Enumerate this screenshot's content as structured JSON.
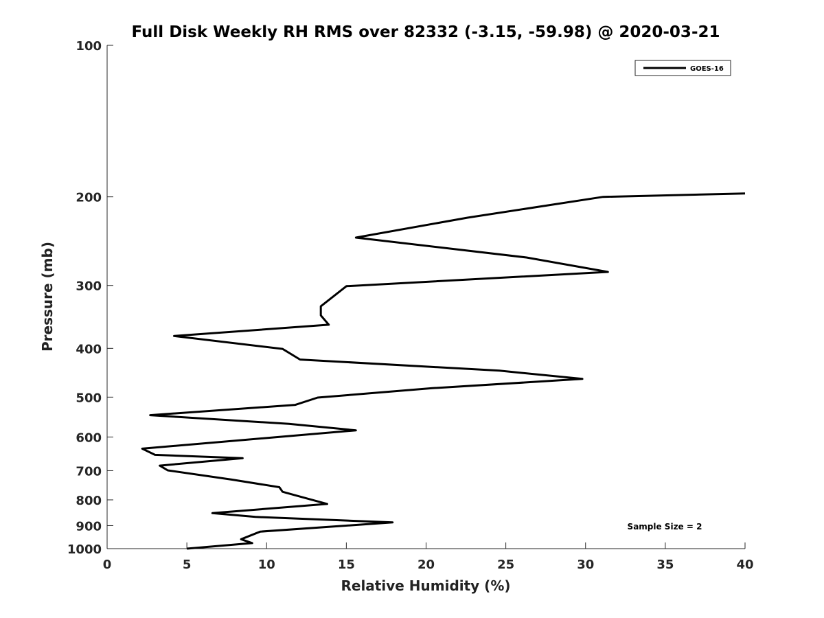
{
  "chart_data": {
    "type": "line",
    "title": "Full Disk Weekly RH RMS over 82332 (-3.15, -59.98) @ 2020-03-21",
    "xlabel": "Relative Humidity (%)",
    "ylabel": "Pressure (mb)",
    "xlim": [
      0,
      40
    ],
    "ylim": [
      1000,
      100
    ],
    "y_scale": "log",
    "y_reversed": true,
    "grid": false,
    "legend_position": "top-right",
    "x_ticks": [
      "0",
      "5",
      "10",
      "15",
      "20",
      "25",
      "30",
      "35",
      "40"
    ],
    "y_ticks": [
      "100",
      "200",
      "300",
      "400",
      "500",
      "600",
      "700",
      "800",
      "900",
      "1000"
    ],
    "annotation": "Sample Size = 2",
    "series": [
      {
        "name": "GOES-16",
        "color": "#000000",
        "points": [
          [
            5.0,
            1000
          ],
          [
            9.1,
            975
          ],
          [
            8.4,
            958
          ],
          [
            9.6,
            925
          ],
          [
            17.9,
            887
          ],
          [
            9.3,
            865
          ],
          [
            6.6,
            850
          ],
          [
            13.8,
            815
          ],
          [
            12.1,
            788
          ],
          [
            11.0,
            771
          ],
          [
            10.8,
            755
          ],
          [
            7.8,
            729
          ],
          [
            3.8,
            699
          ],
          [
            3.3,
            684
          ],
          [
            8.5,
            661
          ],
          [
            3.0,
            651
          ],
          [
            2.2,
            633
          ],
          [
            15.6,
            582
          ],
          [
            11.4,
            565
          ],
          [
            2.7,
            543
          ],
          [
            11.8,
            518
          ],
          [
            13.2,
            501
          ],
          [
            20.4,
            480
          ],
          [
            29.8,
            460
          ],
          [
            24.6,
            443
          ],
          [
            12.1,
            421
          ],
          [
            11.0,
            401
          ],
          [
            4.2,
            378
          ],
          [
            13.9,
            359
          ],
          [
            13.4,
            344
          ],
          [
            13.4,
            330
          ],
          [
            15.0,
            301
          ],
          [
            31.4,
            282
          ],
          [
            26.3,
            264
          ],
          [
            15.6,
            241
          ],
          [
            22.6,
            220
          ],
          [
            31.1,
            200
          ],
          [
            40.0,
            197
          ]
        ]
      }
    ]
  }
}
